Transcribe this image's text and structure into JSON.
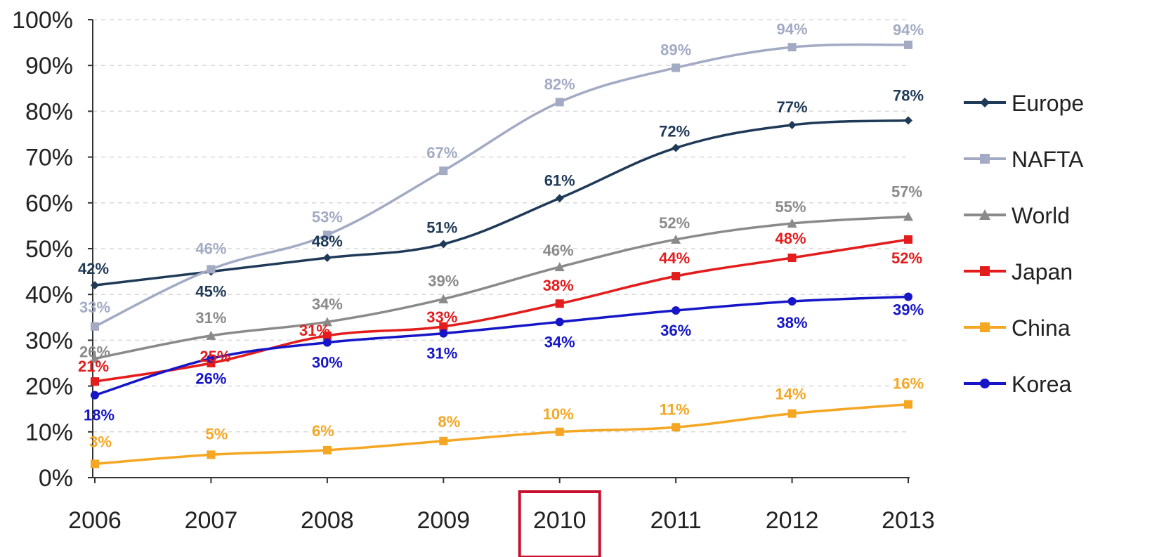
{
  "chart_data": {
    "type": "line",
    "title": "",
    "xlabel": "",
    "ylabel": "",
    "x": [
      "2006",
      "2007",
      "2008",
      "2009",
      "2010",
      "2011",
      "2012",
      "2013"
    ],
    "y_ticks": [
      "0%",
      "10%",
      "20%",
      "30%",
      "40%",
      "50%",
      "60%",
      "70%",
      "80%",
      "90%",
      "100%"
    ],
    "ylim": [
      0,
      100
    ],
    "grid": "horizontal dashed",
    "legend_position": "right",
    "highlighted_x": "2010",
    "highlight_color": "#c8102e",
    "series": [
      {
        "name": "Europe",
        "color": "#1f3a57",
        "marker": "diamond",
        "values": [
          42,
          45,
          48,
          51,
          61,
          72,
          77,
          78
        ],
        "labels": [
          "42%",
          "45%",
          "48%",
          "51%",
          "61%",
          "72%",
          "77%",
          "78%"
        ]
      },
      {
        "name": "NAFTA",
        "color": "#a3abc4",
        "marker": "square",
        "values": [
          33,
          45.5,
          53,
          67,
          82,
          89.5,
          94,
          94.5
        ],
        "labels": [
          "33%",
          "46%",
          "53%",
          "67%",
          "82%",
          "89%",
          "94%",
          "94%"
        ]
      },
      {
        "name": "World",
        "color": "#8a8a8a",
        "marker": "triangle",
        "values": [
          26,
          31,
          34,
          39,
          46,
          52,
          55.5,
          57
        ],
        "labels": [
          "26%",
          "31%",
          "34%",
          "39%",
          "46%",
          "52%",
          "55%",
          "57%"
        ]
      },
      {
        "name": "Japan",
        "color": "#e31c1c",
        "marker": "square",
        "values": [
          21,
          25,
          31,
          33,
          38,
          44,
          48,
          52
        ],
        "labels": [
          "21%",
          "25%",
          "31%",
          "33%",
          "38%",
          "44%",
          "48%",
          "52%"
        ]
      },
      {
        "name": "China",
        "color": "#f5a623",
        "marker": "square",
        "values": [
          3,
          5,
          6,
          8,
          10,
          11,
          14,
          16
        ],
        "labels": [
          "3%",
          "5%",
          "6%",
          "8%",
          "10%",
          "11%",
          "14%",
          "16%"
        ]
      },
      {
        "name": "Korea",
        "color": "#1616c8",
        "marker": "circle",
        "values": [
          18,
          26,
          29.5,
          31.5,
          34,
          36.5,
          38.5,
          39.5
        ],
        "labels": [
          "18%",
          "26%",
          "30%",
          "31%",
          "34%",
          "36%",
          "38%",
          "39%"
        ]
      }
    ]
  }
}
